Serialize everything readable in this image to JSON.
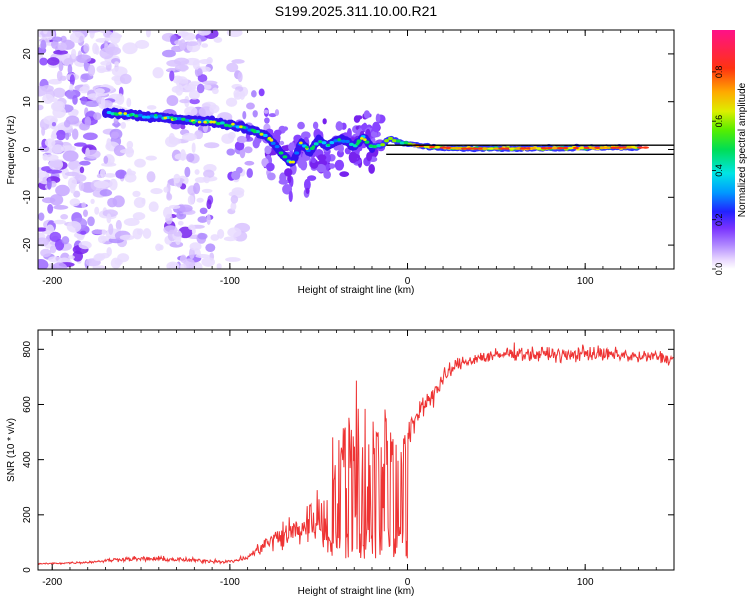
{
  "title": "S199.2025.311.10.00.R21",
  "colors": {
    "snr_line": "#ee3333",
    "background": "#ffffff",
    "axis": "#000000"
  },
  "chart_data": [
    {
      "type": "heatmap",
      "name": "spectrogram",
      "xlabel": "Height of straight line (km)",
      "ylabel": "Frequency (Hz)",
      "xlim": [
        -208,
        150
      ],
      "ylim": [
        -25,
        25
      ],
      "x_ticks": [
        -200,
        -100,
        0,
        100
      ],
      "x_tick_labels": [
        "-200",
        "-100",
        "0",
        "100"
      ],
      "y_ticks": [
        -20,
        -10,
        0,
        10,
        20
      ],
      "y_tick_labels": [
        "-20",
        "-10",
        "0",
        "10",
        "20"
      ],
      "ridge": {
        "x": [
          -170,
          -160,
          -150,
          -140,
          -130,
          -120,
          -110,
          -100,
          -90,
          -80,
          -75,
          -70,
          -65,
          -60,
          -55,
          -50,
          -45,
          -40,
          -35,
          -30,
          -25,
          -20,
          -15,
          -10,
          -5,
          0,
          10,
          30,
          60,
          90,
          120,
          150
        ],
        "y": [
          7.6,
          7.4,
          7.0,
          6.8,
          6.4,
          6.0,
          5.8,
          5.2,
          4.4,
          3.0,
          1.2,
          -1.2,
          -3.0,
          1.5,
          -0.5,
          2.0,
          0.8,
          2.0,
          1.8,
          0.6,
          2.6,
          0.4,
          0.8,
          2.3,
          1.6,
          1.2,
          0.6,
          0.2,
          0.2,
          0.3,
          0.4,
          0.4
        ]
      },
      "horizontal_lines_y": [
        0.9,
        -1.0
      ]
    },
    {
      "type": "line",
      "name": "snr",
      "xlabel": "Height of straight line (km)",
      "ylabel": "SNR (10 * v/v)",
      "xlim": [
        -208,
        150
      ],
      "ylim": [
        0,
        870
      ],
      "x_ticks": [
        -200,
        -100,
        0,
        100
      ],
      "x_tick_labels": [
        "-200",
        "-100",
        "0",
        "100"
      ],
      "y_ticks": [
        0,
        200,
        400,
        600,
        800
      ],
      "y_tick_labels": [
        "0",
        "200",
        "400",
        "600",
        "800"
      ],
      "series": [
        {
          "name": "SNR",
          "x": [
            -208,
            -180,
            -160,
            -140,
            -120,
            -100,
            -90,
            -80,
            -70,
            -60,
            -50,
            -45,
            -40,
            -35,
            -30,
            -25,
            -20,
            -15,
            -10,
            -5,
            0,
            5,
            10,
            15,
            20,
            25,
            30,
            40,
            50,
            60,
            70,
            80,
            90,
            100,
            110,
            120,
            130,
            140,
            150
          ],
          "y": [
            22,
            28,
            40,
            40,
            35,
            30,
            45,
            95,
            125,
            150,
            200,
            250,
            340,
            400,
            440,
            450,
            440,
            440,
            490,
            420,
            450,
            560,
            610,
            640,
            690,
            730,
            750,
            770,
            775,
            790,
            780,
            785,
            775,
            790,
            780,
            780,
            770,
            775,
            760
          ],
          "noise": [
            4,
            6,
            12,
            14,
            12,
            10,
            15,
            45,
            90,
            110,
            150,
            190,
            280,
            320,
            300,
            280,
            240,
            280,
            180,
            150,
            120,
            80,
            70,
            60,
            50,
            40,
            35,
            35,
            40,
            40,
            40,
            38,
            40,
            45,
            40,
            38,
            35,
            35,
            30
          ]
        }
      ]
    }
  ],
  "colorbar": {
    "label": "Normalized spectral amplitude",
    "range": [
      0,
      0.97
    ],
    "ticks": [
      0.0,
      0.2,
      0.4,
      0.6,
      0.8
    ],
    "tick_labels": [
      "0.0",
      "0.2",
      "0.4",
      "0.6",
      "0.8"
    ]
  }
}
